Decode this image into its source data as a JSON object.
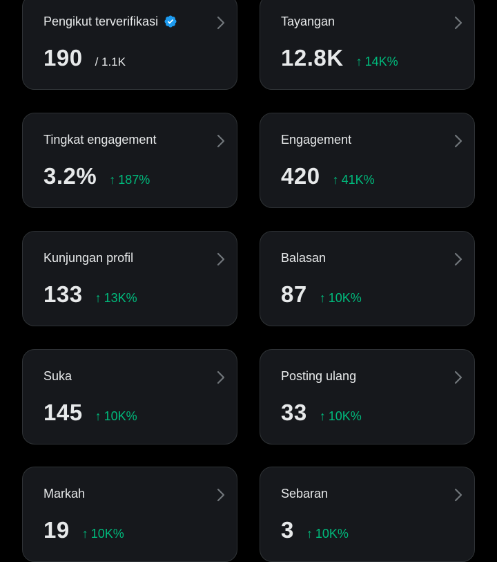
{
  "colors": {
    "background": "#000000",
    "card": "#16181c",
    "border": "#2f3336",
    "text": "#e7e9ea",
    "positive": "#00ba7c",
    "verified": "#1d9bf0",
    "chevron": "#71767b"
  },
  "cards": [
    {
      "title": "Pengikut terverifikasi",
      "value": "190",
      "sub": "/ 1.1K",
      "verified": true
    },
    {
      "title": "Tayangan",
      "value": "12.8K",
      "change": "14K%"
    },
    {
      "title": "Tingkat engagement",
      "value": "3.2%",
      "change": "187%"
    },
    {
      "title": "Engagement",
      "value": "420",
      "change": "41K%"
    },
    {
      "title": "Kunjungan profil",
      "value": "133",
      "change": "13K%"
    },
    {
      "title": "Balasan",
      "value": "87",
      "change": "10K%"
    },
    {
      "title": "Suka",
      "value": "145",
      "change": "10K%"
    },
    {
      "title": "Posting ulang",
      "value": "33",
      "change": "10K%"
    },
    {
      "title": "Markah",
      "value": "19",
      "change": "10K%"
    },
    {
      "title": "Sebaran",
      "value": "3",
      "change": "10K%"
    }
  ],
  "icons": {
    "arrow": "↑",
    "chevron": "chevron-right-icon",
    "verified": "verified-badge-icon"
  }
}
